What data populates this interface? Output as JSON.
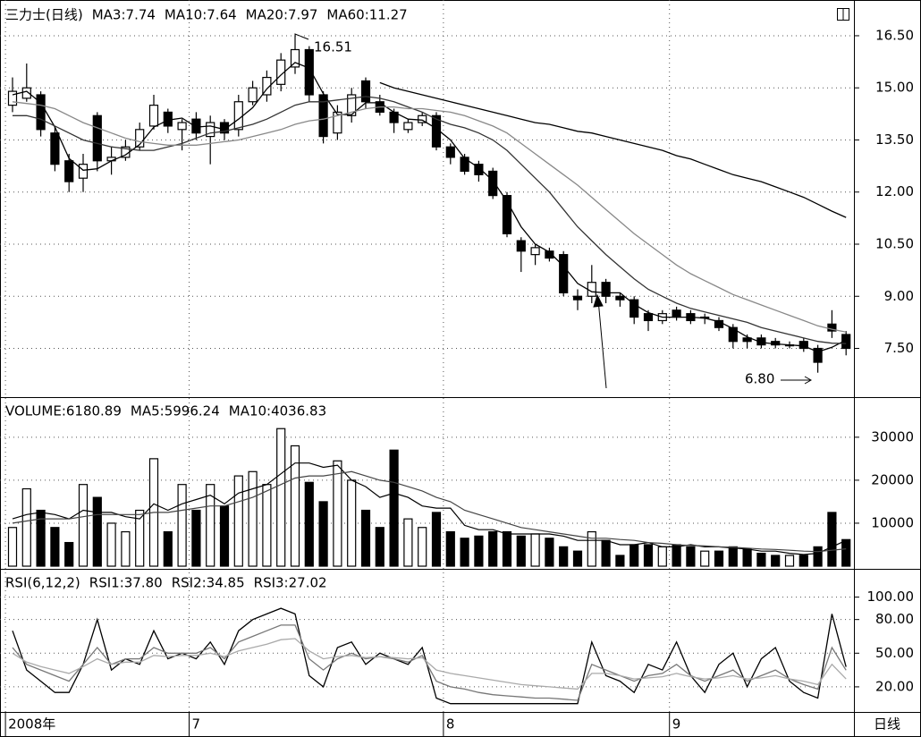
{
  "chart_data": [
    {
      "type": "candlestick",
      "title": "三力士(日线)",
      "categories": [
        "2008年",
        null,
        null,
        null,
        null,
        null,
        null,
        null,
        null,
        null,
        null,
        null,
        null,
        "7",
        null,
        null,
        null,
        null,
        null,
        null,
        null,
        null,
        null,
        null,
        null,
        null,
        null,
        null,
        null,
        null,
        null,
        "8",
        null,
        null,
        null,
        null,
        null,
        null,
        null,
        null,
        null,
        null,
        null,
        null,
        null,
        null,
        null,
        "9",
        null,
        null,
        null,
        null,
        null,
        null,
        null,
        null,
        null,
        null,
        null,
        null
      ],
      "open": [
        14.5,
        14.7,
        14.8,
        13.7,
        12.9,
        12.4,
        14.2,
        12.9,
        13.0,
        13.3,
        13.9,
        14.3,
        13.8,
        14.1,
        13.6,
        14.0,
        13.8,
        14.6,
        14.8,
        15.1,
        15.6,
        16.1,
        14.8,
        13.7,
        14.2,
        15.2,
        14.6,
        14.3,
        13.8,
        14.0,
        14.2,
        13.3,
        13.0,
        12.8,
        12.6,
        11.9,
        10.6,
        10.2,
        10.3,
        10.2,
        9.0,
        9.0,
        9.4,
        9.0,
        8.9,
        8.5,
        8.3,
        8.6,
        8.5,
        8.4,
        8.3,
        8.1,
        7.8,
        7.8,
        7.7,
        7.6,
        7.7,
        7.5,
        8.2,
        7.9
      ],
      "high": [
        15.3,
        15.7,
        14.9,
        13.9,
        13.1,
        13.1,
        14.3,
        13.3,
        13.5,
        14.0,
        14.8,
        14.4,
        14.1,
        14.3,
        14.2,
        14.1,
        14.8,
        15.2,
        15.5,
        16.0,
        16.51,
        16.2,
        14.9,
        14.5,
        15.0,
        15.3,
        14.8,
        14.4,
        14.1,
        14.3,
        14.3,
        13.4,
        13.1,
        12.9,
        12.7,
        12.0,
        10.7,
        10.5,
        10.4,
        10.3,
        9.2,
        9.9,
        9.5,
        9.1,
        9.0,
        8.6,
        8.6,
        8.7,
        8.6,
        8.5,
        8.4,
        8.2,
        7.9,
        7.9,
        7.8,
        7.7,
        7.8,
        7.6,
        8.6,
        8.0
      ],
      "low": [
        14.3,
        14.6,
        13.6,
        12.6,
        12.0,
        12.0,
        12.6,
        12.5,
        12.9,
        13.2,
        13.8,
        13.7,
        13.2,
        13.5,
        12.8,
        13.5,
        13.6,
        14.5,
        14.6,
        14.9,
        15.4,
        14.6,
        13.4,
        13.5,
        14.0,
        14.4,
        14.2,
        13.7,
        13.7,
        13.9,
        13.2,
        12.8,
        12.5,
        12.3,
        11.8,
        10.7,
        9.7,
        9.9,
        10.0,
        9.0,
        8.6,
        8.8,
        8.8,
        8.7,
        8.2,
        8.0,
        8.2,
        8.3,
        8.2,
        8.2,
        8.0,
        7.5,
        7.5,
        7.5,
        7.5,
        7.5,
        7.4,
        6.8,
        7.8,
        7.3
      ],
      "close": [
        14.9,
        15.0,
        13.8,
        12.8,
        12.3,
        12.8,
        12.9,
        13.0,
        13.3,
        13.8,
        14.5,
        13.9,
        14.0,
        13.7,
        14.0,
        13.7,
        14.6,
        15.0,
        15.3,
        15.8,
        16.1,
        14.8,
        13.6,
        14.3,
        14.8,
        14.6,
        14.3,
        14.0,
        14.0,
        14.2,
        13.3,
        13.0,
        12.6,
        12.5,
        11.9,
        10.8,
        10.3,
        10.4,
        10.1,
        9.1,
        8.9,
        9.4,
        9.0,
        8.9,
        8.4,
        8.3,
        8.5,
        8.4,
        8.3,
        8.4,
        8.1,
        7.7,
        7.7,
        7.6,
        7.6,
        7.6,
        7.5,
        7.1,
        8.0,
        7.5
      ],
      "up_color": "#ffffff",
      "down_color": "#000000",
      "series": [
        {
          "name": "MA3:7.74",
          "color": "#000000",
          "values": [
            14.8,
            14.9,
            14.57,
            13.87,
            12.97,
            12.63,
            12.67,
            12.9,
            13.07,
            13.37,
            13.87,
            14.07,
            14.13,
            13.87,
            13.9,
            13.8,
            14.1,
            14.43,
            14.97,
            15.37,
            15.73,
            15.57,
            14.83,
            14.23,
            14.23,
            14.57,
            14.57,
            14.3,
            14.1,
            14.07,
            13.83,
            13.5,
            12.97,
            12.7,
            12.33,
            11.73,
            11.0,
            10.5,
            10.27,
            9.87,
            9.37,
            9.13,
            9.1,
            9.1,
            8.77,
            8.53,
            8.4,
            8.4,
            8.4,
            8.37,
            8.27,
            8.07,
            7.83,
            7.67,
            7.63,
            7.6,
            7.57,
            7.4,
            7.53,
            7.74
          ]
        },
        {
          "name": "MA10:7.64",
          "color": "#333333",
          "values": [
            14.2,
            14.2,
            14.1,
            13.9,
            13.7,
            13.5,
            13.4,
            13.3,
            13.25,
            13.2,
            13.2,
            13.3,
            13.4,
            13.55,
            13.7,
            13.75,
            13.85,
            13.95,
            14.1,
            14.3,
            14.5,
            14.6,
            14.6,
            14.65,
            14.7,
            14.75,
            14.7,
            14.6,
            14.45,
            14.3,
            14.1,
            13.95,
            13.85,
            13.7,
            13.5,
            13.2,
            12.8,
            12.4,
            12.0,
            11.5,
            11.0,
            10.6,
            10.2,
            9.85,
            9.5,
            9.2,
            9.0,
            8.8,
            8.65,
            8.55,
            8.45,
            8.35,
            8.25,
            8.1,
            8.0,
            7.9,
            7.8,
            7.7,
            7.65,
            7.64
          ]
        },
        {
          "name": "MA20:7.97",
          "color": "#888888",
          "values": [
            14.6,
            14.55,
            14.5,
            14.4,
            14.2,
            14.0,
            13.85,
            13.7,
            13.55,
            13.45,
            13.4,
            13.35,
            13.35,
            13.35,
            13.4,
            13.45,
            13.5,
            13.6,
            13.7,
            13.8,
            13.95,
            14.05,
            14.1,
            14.2,
            14.3,
            14.4,
            14.45,
            14.45,
            14.4,
            14.4,
            14.35,
            14.3,
            14.2,
            14.05,
            13.9,
            13.7,
            13.4,
            13.1,
            12.8,
            12.5,
            12.2,
            11.85,
            11.5,
            11.15,
            10.8,
            10.5,
            10.2,
            9.9,
            9.65,
            9.45,
            9.25,
            9.05,
            8.9,
            8.75,
            8.6,
            8.45,
            8.3,
            8.15,
            8.05,
            7.97
          ]
        },
        {
          "name": "MA60:11.27",
          "color": "#000000",
          "values": [
            null,
            null,
            null,
            null,
            null,
            null,
            null,
            null,
            null,
            null,
            null,
            null,
            null,
            null,
            null,
            null,
            null,
            null,
            null,
            null,
            null,
            null,
            null,
            null,
            null,
            null,
            15.15,
            15.0,
            14.9,
            14.8,
            14.7,
            14.6,
            14.5,
            14.4,
            14.3,
            14.2,
            14.1,
            14.0,
            13.95,
            13.85,
            13.75,
            13.7,
            13.6,
            13.5,
            13.4,
            13.3,
            13.2,
            13.05,
            12.95,
            12.8,
            12.65,
            12.5,
            12.4,
            12.3,
            12.15,
            12.0,
            11.85,
            11.65,
            11.45,
            11.27
          ]
        }
      ],
      "annotations": [
        "16.51",
        "6.80"
      ],
      "ylim": [
        6.2,
        17.4
      ],
      "yticks": [
        {
          "value": 7.5,
          "label": "7.50"
        },
        {
          "value": 9,
          "label": "9.00"
        },
        {
          "value": 10.5,
          "label": "10.50"
        },
        {
          "value": 12,
          "label": "12.00"
        },
        {
          "value": 13.5,
          "label": "13.50"
        },
        {
          "value": 15,
          "label": "15.00"
        },
        {
          "value": 16.5,
          "label": "16.50"
        }
      ],
      "grid": true
    },
    {
      "type": "bar",
      "series": [
        {
          "name": "VOLUME:6180.89",
          "type": "bar",
          "color": "#000000",
          "values": [
            9000,
            18000,
            13000,
            9000,
            5500,
            19000,
            16000,
            10000,
            8000,
            13000,
            25000,
            8000,
            19000,
            13000,
            19000,
            14000,
            21000,
            22000,
            19000,
            32000,
            28000,
            19500,
            15000,
            24500,
            20000,
            13000,
            9000,
            27000,
            11000,
            9000,
            12500,
            8000,
            6500,
            7000,
            8000,
            8000,
            7000,
            7500,
            6500,
            4500,
            3500,
            8000,
            6000,
            2500,
            5000,
            5000,
            4500,
            5000,
            4500,
            3500,
            3500,
            4500,
            4000,
            3000,
            2500,
            2500,
            2500,
            4500,
            12500,
            6180.89
          ]
        },
        {
          "name": "MA5:5996.24",
          "type": "line",
          "color": "#000000",
          "values": [
            11000,
            12000,
            12500,
            12000,
            11000,
            13000,
            12500,
            12500,
            11500,
            11000,
            14500,
            13000,
            14500,
            15500,
            16500,
            14500,
            17000,
            18000,
            19000,
            21500,
            24000,
            24000,
            23000,
            23500,
            20000,
            18500,
            16000,
            17000,
            16000,
            14000,
            13500,
            13500,
            9500,
            8500,
            8500,
            7500,
            7500,
            7500,
            7500,
            7000,
            6000,
            6000,
            6000,
            5000,
            5000,
            5500,
            4500,
            4500,
            5000,
            4500,
            4500,
            4200,
            4000,
            3500,
            3500,
            3000,
            2700,
            3000,
            4500,
            5996.24
          ]
        },
        {
          "name": "MA10:4036.83",
          "type": "line",
          "color": "#444444",
          "values": [
            10000,
            10500,
            11000,
            11000,
            11000,
            11500,
            12000,
            12000,
            12000,
            12000,
            12500,
            12500,
            13000,
            13500,
            14000,
            14000,
            15000,
            16000,
            17500,
            19000,
            20500,
            21000,
            21000,
            21500,
            22000,
            21000,
            20000,
            19500,
            18500,
            17500,
            16000,
            15000,
            13000,
            12000,
            11000,
            10000,
            9000,
            8500,
            8000,
            7500,
            7000,
            6500,
            6500,
            6200,
            6000,
            5500,
            5300,
            5000,
            4800,
            4700,
            4500,
            4400,
            4200,
            4000,
            3900,
            3700,
            3500,
            3400,
            3700,
            4036.83
          ]
        }
      ],
      "ylim": [
        0,
        38500
      ],
      "yticks": [
        10000,
        20000,
        30000
      ],
      "grid": true
    },
    {
      "type": "line",
      "title": "RSI(6,12,2)",
      "series": [
        {
          "name": "RSI1:37.80",
          "color": "#000000",
          "values": [
            70,
            35,
            25,
            15,
            15,
            40,
            80,
            35,
            45,
            40,
            70,
            45,
            50,
            45,
            60,
            40,
            70,
            80,
            85,
            90,
            85,
            30,
            20,
            55,
            60,
            40,
            50,
            45,
            40,
            55,
            10,
            5,
            5,
            5,
            5,
            5,
            5,
            5,
            5,
            5,
            5,
            60,
            30,
            25,
            15,
            40,
            35,
            60,
            30,
            15,
            40,
            50,
            20,
            45,
            55,
            25,
            15,
            10,
            85,
            37.8
          ]
        },
        {
          "name": "RSI2:34.85",
          "color": "#777777",
          "values": [
            55,
            40,
            35,
            30,
            25,
            40,
            55,
            40,
            45,
            45,
            55,
            50,
            50,
            50,
            55,
            45,
            60,
            65,
            70,
            75,
            75,
            45,
            35,
            45,
            50,
            45,
            47,
            45,
            42,
            48,
            25,
            20,
            18,
            15,
            13,
            12,
            11,
            10,
            10,
            9,
            8,
            40,
            35,
            30,
            25,
            30,
            32,
            40,
            30,
            25,
            30,
            35,
            25,
            30,
            35,
            27,
            22,
            18,
            55,
            34.85
          ]
        },
        {
          "name": "RSI3:27.02",
          "color": "#aaaaaa",
          "values": [
            50,
            42,
            38,
            35,
            32,
            38,
            45,
            40,
            42,
            42,
            48,
            47,
            48,
            48,
            50,
            47,
            52,
            55,
            58,
            62,
            63,
            52,
            45,
            47,
            48,
            46,
            47,
            46,
            45,
            46,
            35,
            32,
            30,
            28,
            26,
            24,
            22,
            21,
            20,
            19,
            18,
            32,
            32,
            30,
            27,
            28,
            29,
            32,
            29,
            27,
            28,
            30,
            27,
            28,
            30,
            27,
            25,
            22,
            40,
            27.02
          ]
        }
      ],
      "ylim": [
        0,
        122
      ],
      "yticks": [
        {
          "value": 20,
          "label": "20.00"
        },
        {
          "value": 50,
          "label": "50.00"
        },
        {
          "value": 80,
          "label": "80.00"
        },
        {
          "value": 100,
          "label": "100.00"
        }
      ],
      "grid": true
    }
  ],
  "period_label": "日线"
}
